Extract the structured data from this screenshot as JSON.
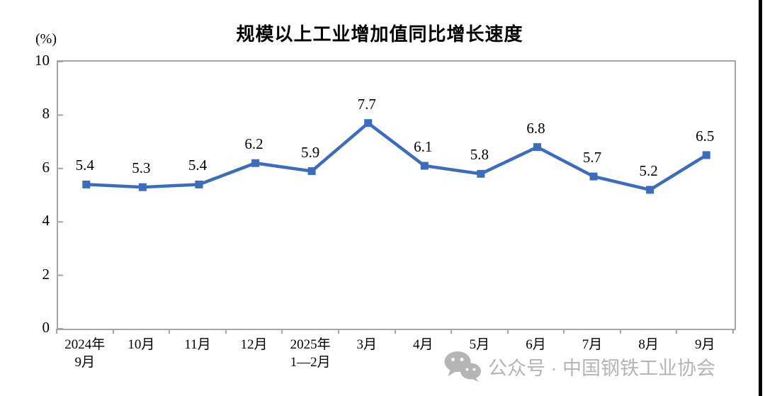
{
  "chart_data": {
    "type": "line",
    "title": "规模以上工业增加值同比增长速度",
    "unit_label": "(%)",
    "categories": [
      [
        "2024年",
        "9月"
      ],
      [
        "10月"
      ],
      [
        "11月"
      ],
      [
        "12月"
      ],
      [
        "2025年",
        "1—2月"
      ],
      [
        "3月"
      ],
      [
        "4月"
      ],
      [
        "5月"
      ],
      [
        "6月"
      ],
      [
        "7月"
      ],
      [
        "8月"
      ],
      [
        "9月"
      ]
    ],
    "series": [
      {
        "name": "规模以上工业增加值同比增长速度",
        "values": [
          5.4,
          5.3,
          5.4,
          6.2,
          5.9,
          7.7,
          6.1,
          5.8,
          6.8,
          5.7,
          5.2,
          6.5
        ]
      }
    ],
    "data_labels": [
      "5.4",
      "5.3",
      "5.4",
      "6.2",
      "5.9",
      "7.7",
      "6.1",
      "5.8",
      "6.8",
      "5.7",
      "5.2",
      "6.5"
    ],
    "xlabel": "",
    "ylabel": "(%)",
    "ylim": [
      0,
      10
    ],
    "yticks": [
      0,
      2,
      4,
      6,
      8,
      10
    ],
    "grid": false,
    "legend_position": "none",
    "marker": "square"
  },
  "watermark": {
    "text": "公众号 · 中国钢铁工业协会",
    "icon": "wechat-icon"
  },
  "colors": {
    "line": "#3B6CBE",
    "axis": "#A6A6A6",
    "text": "#000000",
    "watermark": "#B5B5B5",
    "edge_bar": "#000000"
  }
}
